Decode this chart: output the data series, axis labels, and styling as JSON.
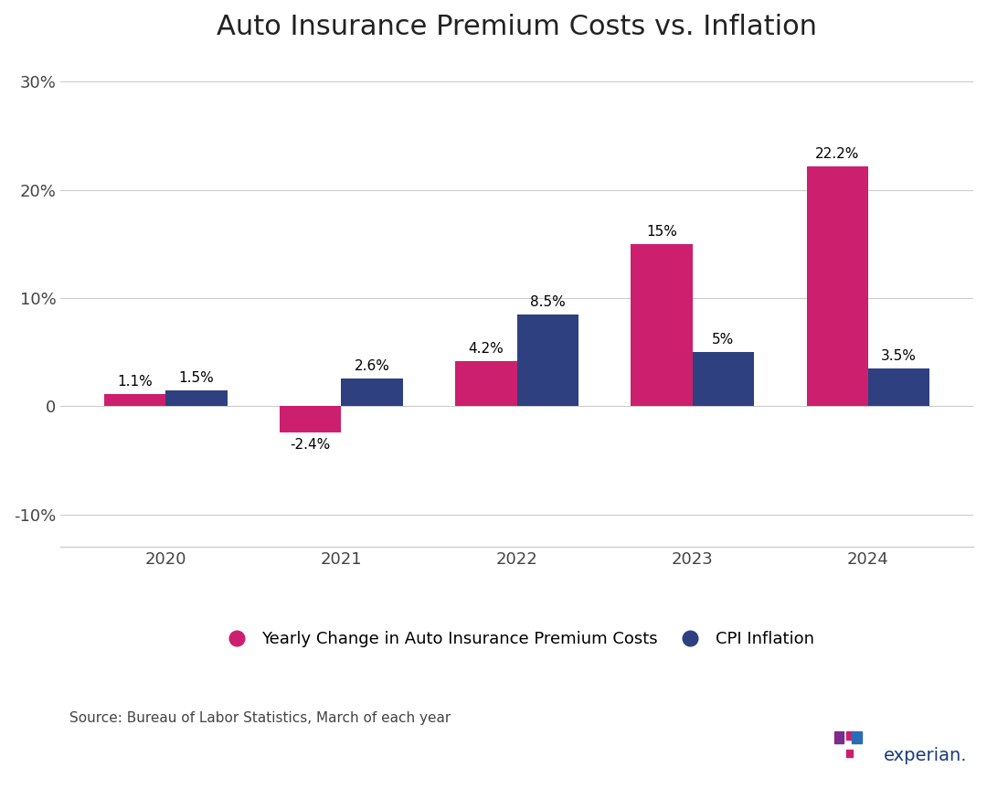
{
  "title": "Auto Insurance Premium Costs vs. Inflation",
  "years": [
    "2020",
    "2021",
    "2022",
    "2023",
    "2024"
  ],
  "insurance_values": [
    1.1,
    -2.4,
    4.2,
    15.0,
    22.2
  ],
  "cpi_values": [
    1.5,
    2.6,
    8.5,
    5.0,
    3.5
  ],
  "insurance_labels": [
    "1.1%",
    "-2.4%",
    "4.2%",
    "15%",
    "22.2%"
  ],
  "cpi_labels": [
    "1.5%",
    "2.6%",
    "8.5%",
    "5%",
    "3.5%"
  ],
  "insurance_color": "#CC1F6E",
  "cpi_color": "#2E4080",
  "bar_width": 0.35,
  "ylim": [
    -13,
    32
  ],
  "yticks": [
    -10,
    0,
    10,
    20,
    30
  ],
  "ytick_labels": [
    "-10%",
    "0",
    "10%",
    "20%",
    "30%"
  ],
  "legend_insurance": "Yearly Change in Auto Insurance Premium Costs",
  "legend_cpi": "CPI Inflation",
  "source_text": "Source: Bureau of Labor Statistics, March of each year",
  "title_fontsize": 22,
  "axis_label_fontsize": 13,
  "bar_label_fontsize": 11,
  "legend_fontsize": 13,
  "source_fontsize": 11,
  "background_color": "#ffffff",
  "grid_color": "#cccccc"
}
